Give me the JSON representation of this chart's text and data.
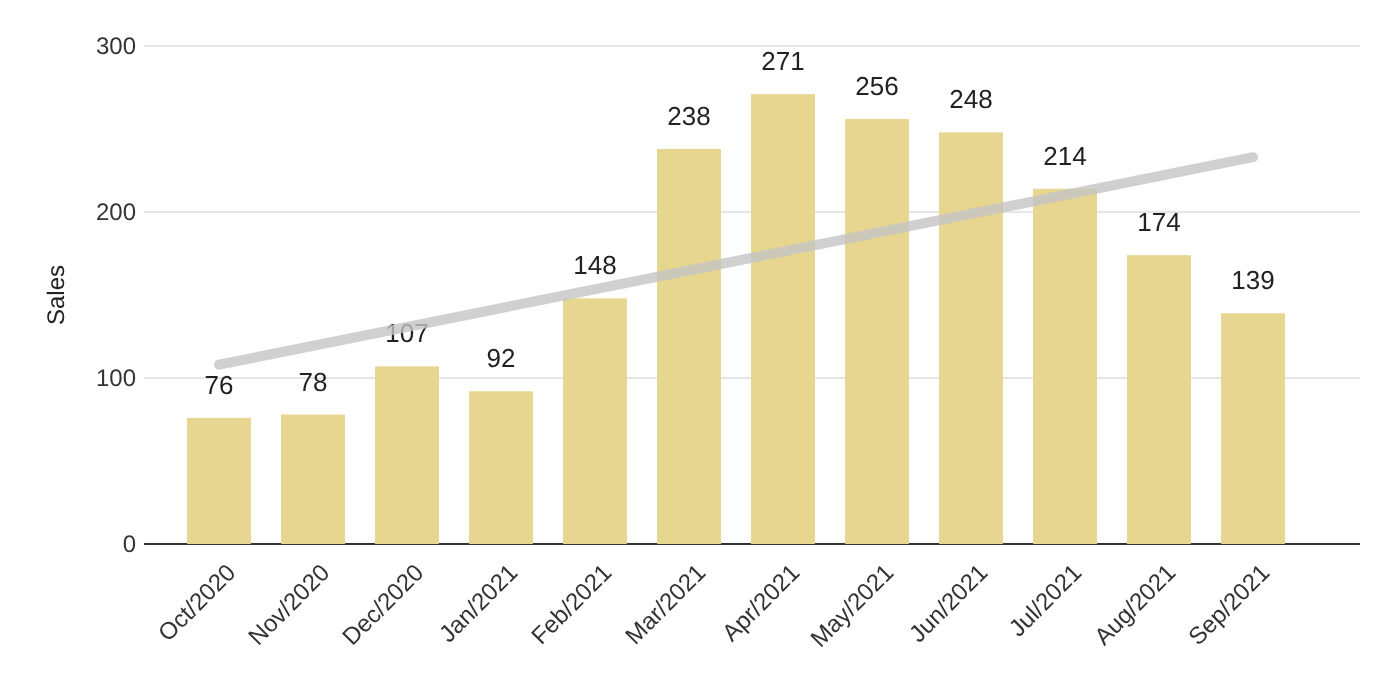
{
  "chart_data": {
    "type": "bar",
    "ylabel": "Sales",
    "categories": [
      "Oct/2020",
      "Nov/2020",
      "Dec/2020",
      "Jan/2021",
      "Feb/2021",
      "Mar/2021",
      "Apr/2021",
      "May/2021",
      "Jun/2021",
      "Jul/2021",
      "Aug/2021",
      "Sep/2021"
    ],
    "series": [
      {
        "color": "#e6d690",
        "values": [
          76,
          78,
          107,
          92,
          148,
          238,
          271,
          256,
          248,
          214,
          174,
          139
        ],
        "value_labels": [
          "76",
          "78",
          "107",
          "92",
          "148",
          "238",
          "271",
          "256",
          "248",
          "214",
          "174",
          "139"
        ]
      },
      {
        "type": "line",
        "color": "#c4c4c4",
        "x": [
          "Oct/2020",
          "Sep/2021"
        ],
        "values": [
          108,
          233
        ]
      }
    ],
    "ylim": [
      0,
      300
    ],
    "yticks": [
      0,
      100,
      200,
      300
    ],
    "grid": "y"
  }
}
